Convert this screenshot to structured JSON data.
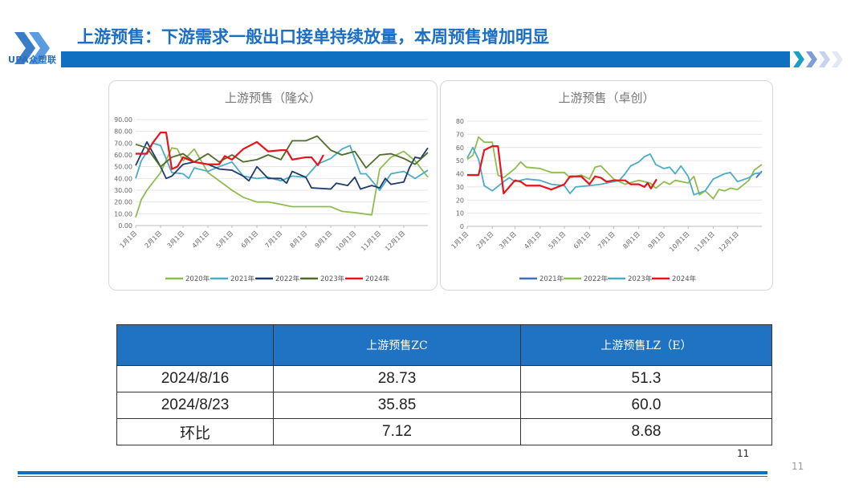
{
  "header": {
    "logo_text": "UPA众塑联",
    "title": "上游预售：下游需求一般出口接单持续放量，本周预售增加明显"
  },
  "page_number": "11",
  "page_number_slide": "11",
  "chart_data": [
    {
      "type": "line",
      "title": "上游预售（隆众）",
      "ylim": [
        0,
        90
      ],
      "yticks": [
        "0.00",
        "10.00",
        "20.00",
        "30.00",
        "40.00",
        "50.00",
        "60.00",
        "70.00",
        "80.00",
        "90.00"
      ],
      "xticks": [
        "1月1日",
        "2月1日",
        "3月1日",
        "4月1日",
        "5月1日",
        "6月1日",
        "7月1日",
        "8月1日",
        "9月1日",
        "10月1日",
        "11月1日",
        "12月1日"
      ],
      "grid": true,
      "legend": "bottom",
      "series": [
        {
          "name": "2020年",
          "color": "#8fbc4f",
          "points": [
            [
              "1/1",
              7
            ],
            [
              "1/8",
              22
            ],
            [
              "1/15",
              30
            ],
            [
              "2/1",
              45
            ],
            [
              "2/15",
              66
            ],
            [
              "2/22",
              65
            ],
            [
              "3/1",
              55
            ],
            [
              "3/15",
              65
            ],
            [
              "4/1",
              45
            ],
            [
              "4/15",
              38
            ],
            [
              "5/1",
              30
            ],
            [
              "5/15",
              24
            ],
            [
              "6/1",
              20
            ],
            [
              "6/15",
              20
            ],
            [
              "7/1",
              18
            ],
            [
              "7/15",
              16
            ],
            [
              "8/1",
              16
            ],
            [
              "8/15",
              16
            ],
            [
              "9/1",
              16
            ],
            [
              "9/15",
              12
            ],
            [
              "10/1",
              11
            ],
            [
              "10/22",
              9
            ],
            [
              "11/1",
              48
            ],
            [
              "11/15",
              58
            ],
            [
              "12/1",
              63
            ],
            [
              "12/15",
              55
            ],
            [
              "12/31",
              41
            ]
          ]
        },
        {
          "name": "2021年",
          "color": "#4bacc6",
          "points": [
            [
              "1/1",
              40
            ],
            [
              "1/8",
              55
            ],
            [
              "1/22",
              70
            ],
            [
              "2/1",
              68
            ],
            [
              "2/15",
              45
            ],
            [
              "3/1",
              44
            ],
            [
              "3/8",
              40
            ],
            [
              "3/15",
              49
            ],
            [
              "4/1",
              46
            ],
            [
              "4/15",
              50
            ],
            [
              "5/1",
              54
            ],
            [
              "5/15",
              42
            ],
            [
              "6/1",
              40
            ],
            [
              "6/15",
              41
            ],
            [
              "7/1",
              38
            ],
            [
              "7/15",
              42
            ],
            [
              "8/1",
              41
            ],
            [
              "8/15",
              52
            ],
            [
              "9/1",
              57
            ],
            [
              "9/15",
              65
            ],
            [
              "9/25",
              68
            ],
            [
              "10/8",
              44
            ],
            [
              "10/15",
              44
            ],
            [
              "11/1",
              30
            ],
            [
              "11/15",
              44
            ],
            [
              "12/1",
              46
            ],
            [
              "12/15",
              40
            ],
            [
              "12/31",
              47
            ]
          ]
        },
        {
          "name": "2022年",
          "color": "#1f3b6e",
          "points": [
            [
              "1/1",
              51
            ],
            [
              "1/15",
              71
            ],
            [
              "2/1",
              50
            ],
            [
              "2/8",
              40
            ],
            [
              "2/15",
              42
            ],
            [
              "3/1",
              52
            ],
            [
              "3/15",
              54
            ],
            [
              "4/1",
              52
            ],
            [
              "4/15",
              48
            ],
            [
              "5/1",
              47
            ],
            [
              "5/15",
              42
            ],
            [
              "5/22",
              38
            ],
            [
              "6/1",
              50
            ],
            [
              "6/15",
              40
            ],
            [
              "7/1",
              40
            ],
            [
              "7/8",
              36
            ],
            [
              "7/15",
              46
            ],
            [
              "8/1",
              41
            ],
            [
              "8/8",
              32
            ],
            [
              "9/1",
              31
            ],
            [
              "9/8",
              36
            ],
            [
              "9/22",
              34
            ],
            [
              "10/1",
              41
            ],
            [
              "10/8",
              31
            ],
            [
              "10/22",
              34
            ],
            [
              "11/1",
              32
            ],
            [
              "11/8",
              40
            ],
            [
              "11/15",
              35
            ],
            [
              "12/1",
              37
            ],
            [
              "12/8",
              49
            ],
            [
              "12/15",
              58
            ],
            [
              "12/22",
              57
            ],
            [
              "12/31",
              66
            ]
          ]
        },
        {
          "name": "2023年",
          "color": "#4f6b2a",
          "points": [
            [
              "1/1",
              69
            ],
            [
              "1/15",
              66
            ],
            [
              "2/1",
              50
            ],
            [
              "2/15",
              58
            ],
            [
              "3/1",
              61
            ],
            [
              "3/15",
              54
            ],
            [
              "4/1",
              61
            ],
            [
              "4/15",
              54
            ],
            [
              "5/1",
              60
            ],
            [
              "5/15",
              54
            ],
            [
              "6/1",
              56
            ],
            [
              "6/15",
              60
            ],
            [
              "7/1",
              56
            ],
            [
              "7/15",
              72
            ],
            [
              "8/1",
              72
            ],
            [
              "8/15",
              76
            ],
            [
              "9/1",
              64
            ],
            [
              "9/15",
              60
            ],
            [
              "10/1",
              63
            ],
            [
              "10/15",
              49
            ],
            [
              "11/1",
              60
            ],
            [
              "11/15",
              61
            ],
            [
              "12/1",
              57
            ],
            [
              "12/15",
              52
            ],
            [
              "12/31",
              62
            ]
          ]
        },
        {
          "name": "2024年",
          "color": "#e8141b",
          "points": [
            [
              "1/1",
              61
            ],
            [
              "1/15",
              61
            ],
            [
              "1/22",
              70
            ],
            [
              "2/1",
              79
            ],
            [
              "2/8",
              79
            ],
            [
              "2/15",
              48
            ],
            [
              "2/22",
              50
            ],
            [
              "3/1",
              58
            ],
            [
              "3/15",
              54
            ],
            [
              "4/1",
              52
            ],
            [
              "4/15",
              52
            ],
            [
              "4/22",
              59
            ],
            [
              "5/1",
              56
            ],
            [
              "5/15",
              65
            ],
            [
              "6/1",
              71
            ],
            [
              "6/15",
              63
            ],
            [
              "7/1",
              64
            ],
            [
              "7/8",
              64
            ],
            [
              "7/15",
              56
            ],
            [
              "8/1",
              58
            ],
            [
              "8/8",
              58
            ],
            [
              "8/16",
              51.3
            ],
            [
              "8/23",
              60
            ]
          ]
        }
      ]
    },
    {
      "type": "line",
      "title": "上游预售（卓创）",
      "ylim": [
        0,
        80
      ],
      "yticks": [
        "0",
        "10",
        "20",
        "30",
        "40",
        "50",
        "60",
        "70",
        "80"
      ],
      "xticks": [
        "1月1日",
        "2月1日",
        "3月1日",
        "4月1日",
        "5月1日",
        "6月1日",
        "7月1日",
        "8月1日",
        "9月1日",
        "10月1日",
        "11月1日",
        "12月1日"
      ],
      "grid": true,
      "legend": "bottom",
      "series": [
        {
          "name": "2021年",
          "color": "#3f6fb5",
          "points": [
            [
              "12/24",
              37
            ],
            [
              "12/31",
              42
            ]
          ]
        },
        {
          "name": "2022年",
          "color": "#8fbc4f",
          "points": [
            [
              "1/1",
              51
            ],
            [
              "1/8",
              54
            ],
            [
              "1/15",
              68
            ],
            [
              "1/22",
              64
            ],
            [
              "2/1",
              64
            ],
            [
              "2/8",
              39
            ],
            [
              "2/15",
              37
            ],
            [
              "3/1",
              44
            ],
            [
              "3/8",
              49
            ],
            [
              "3/15",
              45
            ],
            [
              "4/1",
              44
            ],
            [
              "4/15",
              41
            ],
            [
              "5/1",
              41
            ],
            [
              "5/8",
              37
            ],
            [
              "5/22",
              39
            ],
            [
              "6/1",
              36
            ],
            [
              "6/8",
              45
            ],
            [
              "6/15",
              46
            ],
            [
              "7/1",
              36
            ],
            [
              "7/15",
              32
            ],
            [
              "8/1",
              35
            ],
            [
              "8/15",
              33
            ],
            [
              "8/22",
              29
            ],
            [
              "9/1",
              34
            ],
            [
              "9/8",
              32
            ],
            [
              "9/15",
              35
            ],
            [
              "10/1",
              33
            ],
            [
              "10/8",
              38
            ],
            [
              "10/15",
              24
            ],
            [
              "10/22",
              27
            ],
            [
              "11/1",
              21
            ],
            [
              "11/8",
              28
            ],
            [
              "11/15",
              27
            ],
            [
              "11/22",
              29
            ],
            [
              "12/1",
              28
            ],
            [
              "12/15",
              35
            ],
            [
              "12/22",
              43
            ],
            [
              "12/31",
              47
            ]
          ]
        },
        {
          "name": "2023年",
          "color": "#4bacc6",
          "points": [
            [
              "1/1",
              52
            ],
            [
              "1/8",
              60
            ],
            [
              "1/15",
              51
            ],
            [
              "1/22",
              31
            ],
            [
              "2/1",
              27
            ],
            [
              "2/15",
              34
            ],
            [
              "2/22",
              37
            ],
            [
              "3/1",
              34
            ],
            [
              "3/15",
              36
            ],
            [
              "4/1",
              35
            ],
            [
              "4/15",
              32
            ],
            [
              "5/1",
              31
            ],
            [
              "5/8",
              25
            ],
            [
              "5/15",
              30
            ],
            [
              "6/1",
              31
            ],
            [
              "6/15",
              32
            ],
            [
              "7/1",
              34
            ],
            [
              "7/8",
              35
            ],
            [
              "7/15",
              40
            ],
            [
              "7/22",
              46
            ],
            [
              "8/1",
              49
            ],
            [
              "8/8",
              53
            ],
            [
              "8/15",
              55
            ],
            [
              "8/22",
              47
            ],
            [
              "9/1",
              44
            ],
            [
              "9/8",
              45
            ],
            [
              "9/15",
              40
            ],
            [
              "9/22",
              46
            ],
            [
              "10/1",
              38
            ],
            [
              "10/8",
              24
            ],
            [
              "10/22",
              27
            ],
            [
              "11/1",
              36
            ],
            [
              "11/15",
              40
            ],
            [
              "11/22",
              41
            ],
            [
              "12/1",
              34
            ],
            [
              "12/15",
              37
            ],
            [
              "12/22",
              40
            ],
            [
              "12/31",
              41
            ]
          ]
        },
        {
          "name": "2024年",
          "color": "#e8141b",
          "points": [
            [
              "1/1",
              39
            ],
            [
              "1/15",
              39
            ],
            [
              "1/22",
              58
            ],
            [
              "2/1",
              61
            ],
            [
              "2/8",
              61
            ],
            [
              "2/15",
              25
            ],
            [
              "3/1",
              35
            ],
            [
              "3/8",
              34
            ],
            [
              "3/15",
              31
            ],
            [
              "4/1",
              31
            ],
            [
              "4/15",
              28
            ],
            [
              "5/1",
              32
            ],
            [
              "5/8",
              38
            ],
            [
              "5/22",
              38
            ],
            [
              "6/1",
              32
            ],
            [
              "6/8",
              38
            ],
            [
              "6/15",
              37
            ],
            [
              "6/22",
              34
            ],
            [
              "7/1",
              35
            ],
            [
              "7/15",
              35
            ],
            [
              "7/22",
              32
            ],
            [
              "8/1",
              32
            ],
            [
              "8/8",
              30
            ],
            [
              "8/12",
              33
            ],
            [
              "8/16",
              28.73
            ],
            [
              "8/23",
              35.85
            ]
          ]
        }
      ]
    }
  ],
  "table": {
    "headers": [
      "",
      "上游预售ZC",
      "上游预售LZ（E）"
    ],
    "rows": [
      [
        "2024/8/16",
        "28.73",
        "51.3"
      ],
      [
        "2024/8/23",
        "35.85",
        "60.0"
      ],
      [
        "环比",
        "7.12",
        "8.68"
      ]
    ]
  }
}
